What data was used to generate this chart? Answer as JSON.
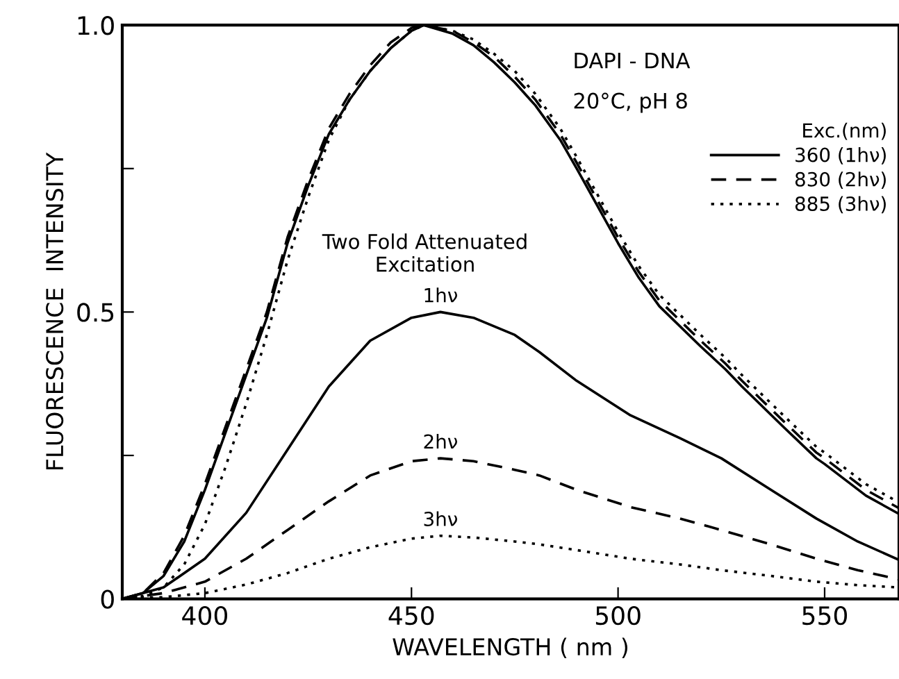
{
  "chart_data": {
    "type": "line",
    "xlabel": "WAVELENGTH ( nm )",
    "ylabel": "FLUORESCENCE  INTENSITY",
    "legend_title": "Exc.(nm)",
    "legend": "right",
    "grid": false,
    "marker": "none",
    "xlim": [
      380,
      568
    ],
    "ylim": [
      0,
      1.0
    ],
    "xticks": [
      400,
      450,
      500,
      550
    ],
    "yticks": [
      0,
      {
        "value": 0.25,
        "label": null
      },
      0.5,
      {
        "value": 0.75,
        "label": null
      },
      {
        "value": 1.0,
        "label": "1.0"
      }
    ],
    "annotations": [
      "DAPI - DNA",
      "20°C, pH 8",
      "Two Fold Attenuated\nExcitation",
      "1hν",
      "2hν",
      "3hν"
    ],
    "x": [
      380,
      385,
      390,
      395,
      400,
      405,
      410,
      415,
      420,
      425,
      430,
      435,
      440,
      445,
      450,
      453,
      460,
      465,
      470,
      475,
      480,
      486,
      490,
      500,
      505,
      510,
      520,
      526,
      530,
      540,
      548,
      550,
      560,
      568
    ],
    "series": [
      {
        "name": "360 (1hν)",
        "color": "#000000",
        "line_style": "solid",
        "values": [
          0,
          0.01,
          0.04,
          0.1,
          0.19,
          0.29,
          0.39,
          0.49,
          0.62,
          0.72,
          0.81,
          0.87,
          0.92,
          0.96,
          0.99,
          1.0,
          0.985,
          0.965,
          0.935,
          0.9,
          0.86,
          0.8,
          0.75,
          0.62,
          0.56,
          0.51,
          0.44,
          0.4,
          0.37,
          0.3,
          0.245,
          0.235,
          0.18,
          0.148
        ]
      },
      {
        "name": "830 (2hν)",
        "color": "#000000",
        "line_style": "dashed",
        "values": [
          0,
          0.01,
          0.045,
          0.11,
          0.2,
          0.3,
          0.4,
          0.5,
          0.63,
          0.73,
          0.82,
          0.88,
          0.93,
          0.97,
          0.995,
          1.0,
          0.99,
          0.97,
          0.945,
          0.91,
          0.87,
          0.81,
          0.76,
          0.63,
          0.57,
          0.52,
          0.45,
          0.41,
          0.38,
          0.31,
          0.255,
          0.245,
          0.19,
          0.158
        ]
      },
      {
        "name": "885 (3hν)",
        "color": "#000000",
        "line_style": "dotted",
        "values": [
          0,
          0.005,
          0.02,
          0.06,
          0.13,
          0.23,
          0.34,
          0.46,
          0.59,
          0.7,
          0.8,
          0.87,
          0.92,
          0.96,
          0.99,
          1.0,
          0.99,
          0.975,
          0.95,
          0.92,
          0.88,
          0.82,
          0.77,
          0.64,
          0.58,
          0.53,
          0.46,
          0.42,
          0.39,
          0.32,
          0.265,
          0.255,
          0.2,
          0.168
        ]
      },
      {
        "color": "#000000",
        "line_style": "solid",
        "x": [
          380,
          390,
          400,
          410,
          420,
          430,
          440,
          450,
          457,
          465,
          475,
          481,
          490,
          503,
          515,
          525,
          537,
          548,
          558,
          568
        ],
        "values": [
          0,
          0.02,
          0.07,
          0.15,
          0.26,
          0.37,
          0.45,
          0.49,
          0.5,
          0.49,
          0.46,
          0.43,
          0.38,
          0.32,
          0.28,
          0.245,
          0.19,
          0.14,
          0.1,
          0.068
        ]
      },
      {
        "color": "#000000",
        "line_style": "dashed",
        "x": [
          380,
          390,
          400,
          410,
          420,
          430,
          440,
          450,
          457,
          465,
          475,
          481,
          490,
          503,
          515,
          525,
          537,
          548,
          558,
          568
        ],
        "values": [
          0,
          0.01,
          0.03,
          0.07,
          0.12,
          0.17,
          0.215,
          0.24,
          0.245,
          0.24,
          0.225,
          0.215,
          0.19,
          0.16,
          0.14,
          0.12,
          0.095,
          0.07,
          0.05,
          0.034
        ]
      },
      {
        "color": "#000000",
        "line_style": "dotted",
        "x": [
          380,
          390,
          400,
          410,
          420,
          430,
          440,
          450,
          457,
          465,
          475,
          481,
          490,
          503,
          515,
          525,
          537,
          548,
          558,
          568
        ],
        "values": [
          0,
          0.003,
          0.01,
          0.025,
          0.045,
          0.07,
          0.09,
          0.105,
          0.11,
          0.107,
          0.1,
          0.095,
          0.085,
          0.07,
          0.06,
          0.05,
          0.04,
          0.03,
          0.024,
          0.02
        ]
      }
    ]
  }
}
